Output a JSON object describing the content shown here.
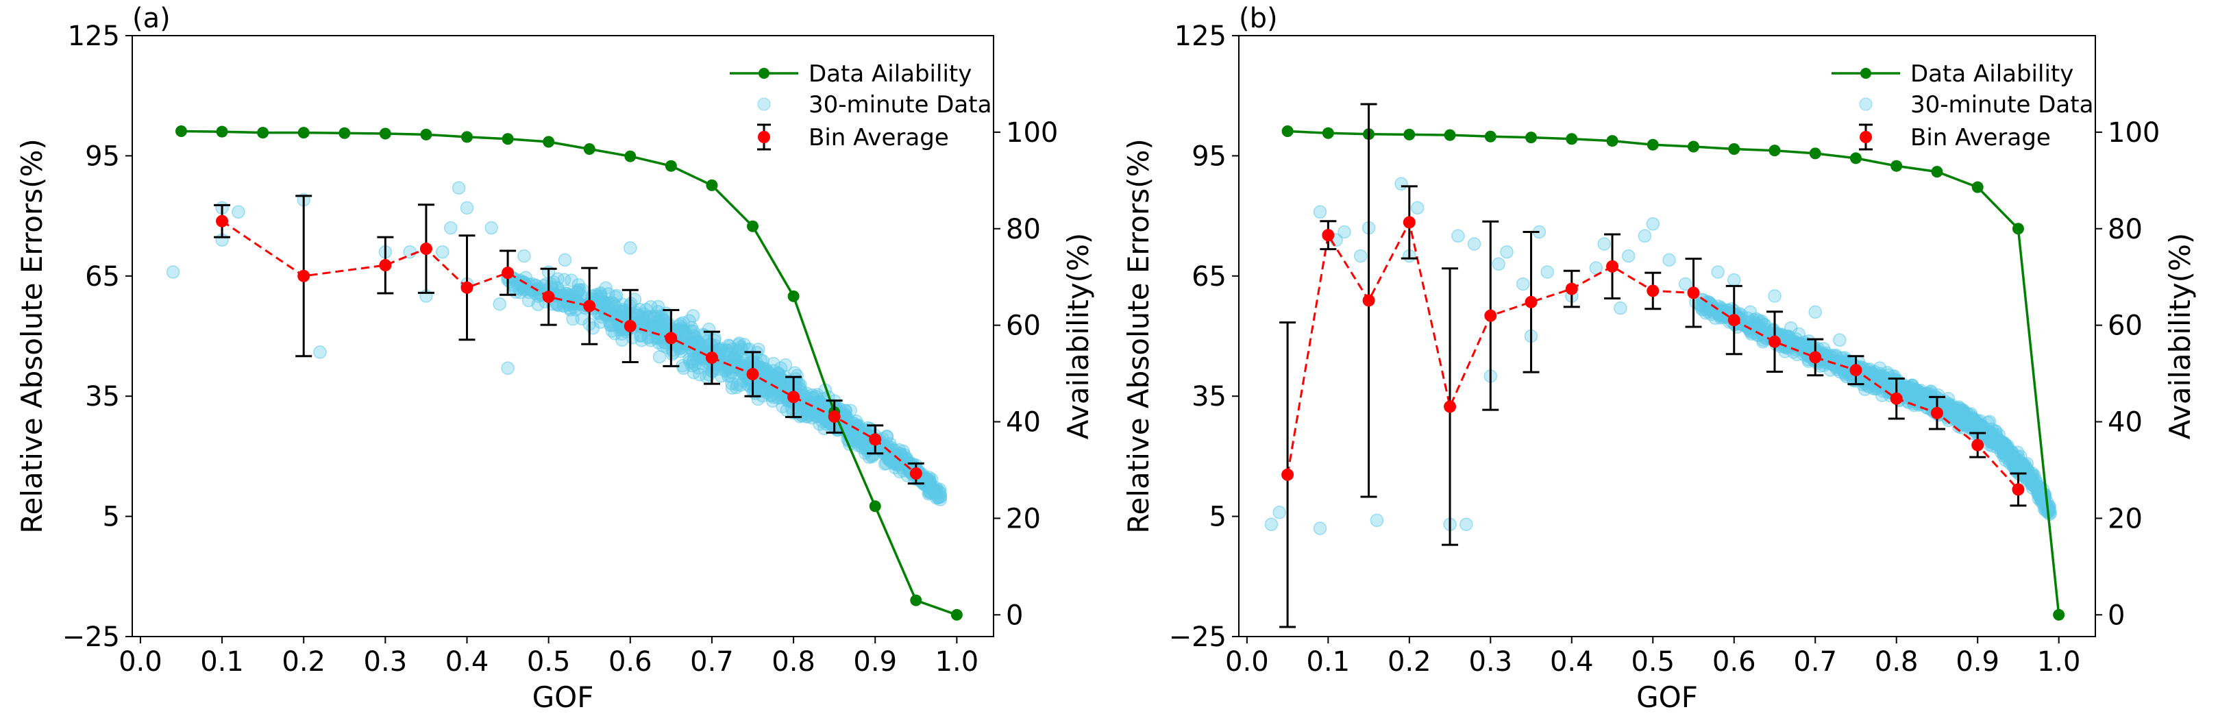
{
  "figure": {
    "legend": {
      "availability": "Data Ailability",
      "scatter": "30-minute Data",
      "bin": "Bin Average"
    },
    "colors": {
      "availability": "#008000",
      "scatter": "#5bc8e8",
      "bin": "#ff0000",
      "errorbar": "#000000"
    }
  },
  "chart_data": [
    {
      "panel": "(a)",
      "type": "scatter",
      "title": "",
      "xlabel": "GOF",
      "ylabel": "Relative Absolute Errors(%)",
      "ylabel_right": "Availability(%)",
      "xlim": [
        -0.01,
        1.045
      ],
      "ylim": [
        -25,
        125
      ],
      "ylim_right": [
        -4.5,
        120
      ],
      "xticks": [
        "0.0",
        "0.1",
        "0.2",
        "0.3",
        "0.4",
        "0.5",
        "0.6",
        "0.7",
        "0.8",
        "0.9",
        "1.0"
      ],
      "yticks": [
        "−25",
        "5",
        "35",
        "65",
        "95",
        "125"
      ],
      "yticks_right": [
        "0",
        "20",
        "40",
        "60",
        "80",
        "100"
      ],
      "availability": {
        "x": [
          0.05,
          0.1,
          0.15,
          0.2,
          0.25,
          0.3,
          0.35,
          0.4,
          0.45,
          0.5,
          0.55,
          0.6,
          0.65,
          0.7,
          0.75,
          0.8,
          0.85,
          0.9,
          0.95,
          1.0
        ],
        "y": [
          100.2,
          100.1,
          99.9,
          99.9,
          99.8,
          99.7,
          99.5,
          99.0,
          98.6,
          98.0,
          96.5,
          95.0,
          93.0,
          89.0,
          80.5,
          66.0,
          42.0,
          22.5,
          3.0,
          0.0
        ]
      },
      "bin_average": {
        "x": [
          0.1,
          0.2,
          0.3,
          0.35,
          0.4,
          0.45,
          0.5,
          0.55,
          0.6,
          0.65,
          0.7,
          0.75,
          0.8,
          0.85,
          0.9,
          0.95
        ],
        "y": [
          78.7,
          65.0,
          67.7,
          71.8,
          62.1,
          65.8,
          59.8,
          57.5,
          52.5,
          49.5,
          44.6,
          40.5,
          34.8,
          29.9,
          24.2,
          15.7
        ],
        "err": [
          4.0,
          20.0,
          7.0,
          11.0,
          13.0,
          5.5,
          7.0,
          9.5,
          9.0,
          7.0,
          6.5,
          5.5,
          5.0,
          4.0,
          3.5,
          2.5
        ]
      },
      "scatter_30min": {
        "sparse": [
          [
            0.04,
            66
          ],
          [
            0.1,
            74
          ],
          [
            0.1,
            82
          ],
          [
            0.12,
            81
          ],
          [
            0.2,
            84
          ],
          [
            0.22,
            46
          ],
          [
            0.3,
            71
          ],
          [
            0.33,
            71
          ],
          [
            0.35,
            60
          ],
          [
            0.37,
            71
          ],
          [
            0.38,
            77
          ],
          [
            0.39,
            87
          ],
          [
            0.4,
            82
          ],
          [
            0.4,
            63
          ],
          [
            0.43,
            77
          ],
          [
            0.44,
            58
          ],
          [
            0.45,
            42
          ],
          [
            0.45,
            64
          ],
          [
            0.46,
            61
          ],
          [
            0.47,
            70
          ],
          [
            0.48,
            63
          ],
          [
            0.5,
            66
          ],
          [
            0.51,
            58
          ],
          [
            0.52,
            69
          ],
          [
            0.54,
            60
          ],
          [
            0.55,
            53
          ],
          [
            0.57,
            62
          ],
          [
            0.58,
            58
          ],
          [
            0.59,
            49
          ],
          [
            0.6,
            72
          ]
        ],
        "band": {
          "x_range": [
            0.45,
            0.98
          ],
          "center": [
            [
              0.45,
              64
            ],
            [
              0.55,
              58
            ],
            [
              0.65,
              50
            ],
            [
              0.75,
              41
            ],
            [
              0.85,
              30
            ],
            [
              0.95,
              16
            ],
            [
              0.98,
              10
            ]
          ],
          "spread": [
            [
              0.45,
              5
            ],
            [
              0.6,
              9
            ],
            [
              0.7,
              10
            ],
            [
              0.8,
              9
            ],
            [
              0.9,
              5
            ],
            [
              0.98,
              3
            ]
          ]
        }
      }
    },
    {
      "panel": "(b)",
      "type": "scatter",
      "title": "",
      "xlabel": "GOF",
      "ylabel": "Relative Absolute Errors(%)",
      "ylabel_right": "Availability(%)",
      "xlim": [
        -0.01,
        1.045
      ],
      "ylim": [
        -25,
        125
      ],
      "ylim_right": [
        -4.5,
        120
      ],
      "xticks": [
        "0.0",
        "0.1",
        "0.2",
        "0.3",
        "0.4",
        "0.5",
        "0.6",
        "0.7",
        "0.8",
        "0.9",
        "1.0"
      ],
      "yticks": [
        "−25",
        "5",
        "35",
        "65",
        "95",
        "125"
      ],
      "yticks_right": [
        "0",
        "20",
        "40",
        "60",
        "80",
        "100"
      ],
      "availability": {
        "x": [
          0.05,
          0.1,
          0.15,
          0.2,
          0.25,
          0.3,
          0.35,
          0.4,
          0.45,
          0.5,
          0.55,
          0.6,
          0.65,
          0.7,
          0.75,
          0.8,
          0.85,
          0.9,
          0.95,
          1.0
        ],
        "y": [
          100.2,
          99.8,
          99.6,
          99.5,
          99.4,
          99.1,
          98.9,
          98.6,
          98.2,
          97.4,
          97.0,
          96.5,
          96.2,
          95.6,
          94.6,
          93.0,
          91.8,
          88.6,
          80.0,
          0.0
        ]
      },
      "bin_average": {
        "x": [
          0.05,
          0.1,
          0.15,
          0.2,
          0.25,
          0.3,
          0.35,
          0.4,
          0.45,
          0.5,
          0.55,
          0.6,
          0.65,
          0.7,
          0.75,
          0.8,
          0.85,
          0.9,
          0.95
        ],
        "y": [
          15.4,
          75.2,
          58.9,
          78.4,
          32.4,
          55.1,
          58.5,
          61.8,
          67.4,
          61.3,
          60.8,
          54.0,
          48.6,
          44.7,
          41.5,
          34.4,
          30.8,
          22.8,
          11.7
        ],
        "err": [
          38.0,
          3.5,
          49.0,
          9.0,
          34.5,
          23.5,
          17.5,
          4.5,
          8.0,
          4.5,
          8.5,
          8.5,
          7.5,
          4.5,
          3.5,
          5.0,
          4.0,
          3.0,
          4.0
        ]
      },
      "scatter_30min": {
        "sparse": [
          [
            0.03,
            3
          ],
          [
            0.04,
            6
          ],
          [
            0.09,
            2
          ],
          [
            0.09,
            81
          ],
          [
            0.11,
            74
          ],
          [
            0.12,
            76
          ],
          [
            0.14,
            70
          ],
          [
            0.15,
            77
          ],
          [
            0.16,
            4
          ],
          [
            0.19,
            88
          ],
          [
            0.2,
            70
          ],
          [
            0.21,
            82
          ],
          [
            0.25,
            3
          ],
          [
            0.26,
            75
          ],
          [
            0.27,
            3
          ],
          [
            0.28,
            73
          ],
          [
            0.3,
            40
          ],
          [
            0.31,
            68
          ],
          [
            0.32,
            71
          ],
          [
            0.34,
            63
          ],
          [
            0.35,
            50
          ],
          [
            0.36,
            76
          ],
          [
            0.37,
            66
          ],
          [
            0.4,
            60
          ],
          [
            0.43,
            67
          ],
          [
            0.44,
            73
          ],
          [
            0.46,
            57
          ],
          [
            0.47,
            70
          ],
          [
            0.49,
            75
          ],
          [
            0.5,
            78
          ],
          [
            0.52,
            69
          ],
          [
            0.54,
            63
          ],
          [
            0.56,
            57
          ],
          [
            0.58,
            66
          ],
          [
            0.6,
            64
          ],
          [
            0.62,
            56
          ],
          [
            0.65,
            60
          ],
          [
            0.67,
            52
          ],
          [
            0.7,
            56
          ],
          [
            0.73,
            49
          ]
        ],
        "band": {
          "x_range": [
            0.55,
            0.99
          ],
          "center": [
            [
              0.55,
              59
            ],
            [
              0.65,
              50
            ],
            [
              0.75,
              41
            ],
            [
              0.85,
              33
            ],
            [
              0.92,
              25
            ],
            [
              0.97,
              13
            ],
            [
              0.99,
              6
            ]
          ],
          "spread": [
            [
              0.55,
              3
            ],
            [
              0.7,
              4
            ],
            [
              0.85,
              4
            ],
            [
              0.95,
              4
            ],
            [
              0.99,
              3
            ]
          ]
        }
      }
    }
  ]
}
